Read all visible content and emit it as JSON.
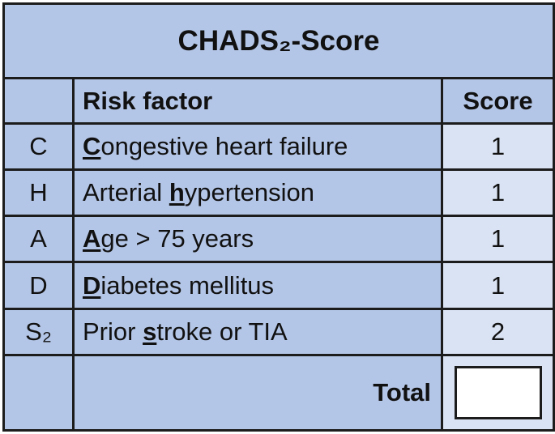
{
  "title": "CHADS₂-Score",
  "header": {
    "risk_factor": "Risk factor",
    "score": "Score"
  },
  "rows": [
    {
      "letter": "C",
      "factor": [
        {
          "text": "C",
          "underline": true
        },
        {
          "text": "ongestive heart failure"
        }
      ],
      "score": 1
    },
    {
      "letter": "H",
      "factor": [
        {
          "text": "Arterial "
        },
        {
          "text": "h",
          "underline": true
        },
        {
          "text": "ypertension"
        }
      ],
      "score": 1
    },
    {
      "letter": "A",
      "factor": [
        {
          "text": "A",
          "underline": true
        },
        {
          "text": "ge > 75 years"
        }
      ],
      "score": 1
    },
    {
      "letter": "D",
      "factor": [
        {
          "text": "D",
          "underline": true
        },
        {
          "text": "iabetes mellitus"
        }
      ],
      "score": 1
    },
    {
      "letter": "S₂",
      "factor": [
        {
          "text": "Prior "
        },
        {
          "text": "s",
          "underline": true
        },
        {
          "text": "troke or TIA"
        }
      ],
      "score": 2
    }
  ],
  "total": {
    "label": "Total"
  }
}
